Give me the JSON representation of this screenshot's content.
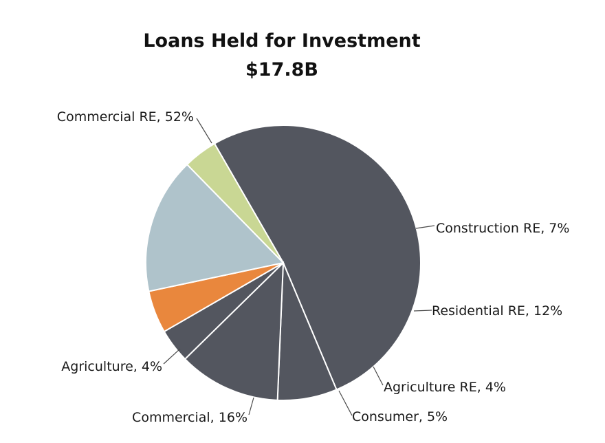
{
  "chart_data": {
    "type": "pie",
    "title": "Loans Held for Investment",
    "subtitle": "$17.8B",
    "slices": [
      {
        "label": "Commercial RE",
        "value": 52,
        "display": "Commercial RE, 52%",
        "color": "#53565f"
      },
      {
        "label": "Construction RE",
        "value": 7,
        "display": "Construction RE, 7%",
        "color": "#53565f"
      },
      {
        "label": "Residential RE",
        "value": 12,
        "display": "Residential RE, 12%",
        "color": "#53565f"
      },
      {
        "label": "Agriculture RE",
        "value": 4,
        "display": "Agriculture RE, 4%",
        "color": "#53565f"
      },
      {
        "label": "Consumer",
        "value": 5,
        "display": "Consumer, 5%",
        "color": "#e9873d"
      },
      {
        "label": "Commercial",
        "value": 16,
        "display": "Commercial, 16%",
        "color": "#afc3cb"
      },
      {
        "label": "Agriculture",
        "value": 4,
        "display": "Agriculture, 4%",
        "color": "#c9d794"
      }
    ]
  }
}
